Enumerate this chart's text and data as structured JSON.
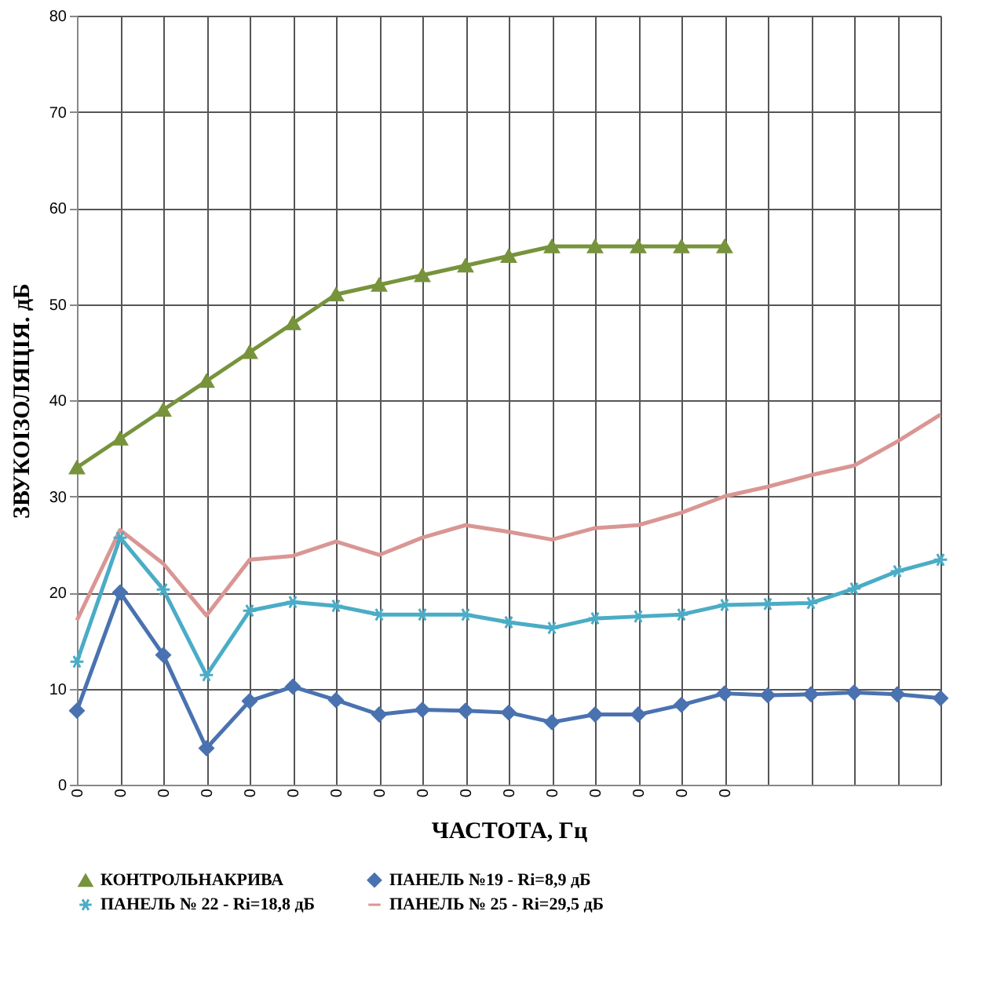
{
  "chart_data": {
    "type": "line",
    "xlabel": "ЧАСТОТА, Гц",
    "ylabel": "ЗВУКОІЗОЛЯЦІЯ. дБ",
    "categories": [
      "0",
      "0",
      "0",
      "0",
      "0",
      "0",
      "0",
      "0",
      "0",
      "0",
      "0",
      "0",
      "0",
      "0",
      "0",
      "0",
      null,
      null,
      null,
      null,
      null
    ],
    "ylim": [
      0,
      80
    ],
    "yticks": [
      0,
      10,
      20,
      30,
      40,
      50,
      60,
      70,
      80
    ],
    "grid": true,
    "legend": "bottom",
    "series": [
      {
        "name": "КОНТРОЛЬНАКРИВА",
        "color": "#77933c",
        "marker": "triangle",
        "values": [
          33,
          36,
          39,
          42,
          45,
          48,
          51,
          52,
          53,
          54,
          55,
          56,
          56,
          56,
          56,
          56,
          null,
          null,
          null,
          null,
          null
        ]
      },
      {
        "name": "ПАНЕЛЬ №19 - Ri=8,9 дБ",
        "color": "#4a72b0",
        "marker": "diamond",
        "values": [
          7.7,
          20,
          13.5,
          3.8,
          8.7,
          10.2,
          8.8,
          7.3,
          7.8,
          7.7,
          7.5,
          6.5,
          7.3,
          7.3,
          8.3,
          9.5,
          9.3,
          9.4,
          9.6,
          9.4,
          9
        ]
      },
      {
        "name": "ПАНЕЛЬ № 22 - Ri=18,8 дБ",
        "color": "#4bacc6",
        "marker": "cross",
        "values": [
          12.8,
          25.7,
          20.3,
          11.4,
          18.1,
          19,
          18.6,
          17.7,
          17.7,
          17.7,
          16.9,
          16.3,
          17.3,
          17.5,
          17.7,
          18.7,
          18.8,
          18.9,
          20.4,
          22.2,
          23.4
        ]
      },
      {
        "name": "ПАНЕЛЬ № 25 - Ri=29,5 дБ",
        "color": "#d99694",
        "marker": "none",
        "values": [
          17.1,
          26.5,
          23,
          17.6,
          23.4,
          23.8,
          25.3,
          23.9,
          25.7,
          27,
          26.3,
          25.5,
          26.7,
          27,
          28.3,
          30,
          31,
          32.2,
          33.2,
          35.7,
          38.5
        ]
      }
    ]
  }
}
